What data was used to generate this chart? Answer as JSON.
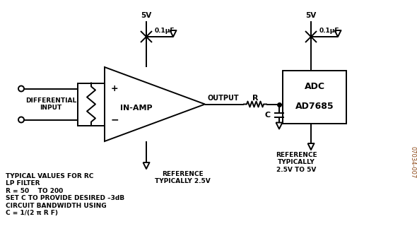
{
  "background_color": "#ffffff",
  "line_color": "#000000",
  "fig_width": 5.9,
  "fig_height": 3.27,
  "dpi": 100,
  "labels": {
    "diff_input": "DIFFERENTIAL\nINPUT",
    "in_amp": "IN-AMP",
    "output": "OUTPUT",
    "ref1": "REFERENCE\nTYPICALLY 2.5V",
    "ref2": "REFERENCE\nTYPICALLY\n2.5V TO 5V",
    "adc": "ADC",
    "ad7685": "AD7685",
    "5v_left": "5V",
    "5v_right": "5V",
    "cap_left": "0.1μF",
    "cap_right": "0.1μF",
    "R_label": "R",
    "C_label": "C",
    "typical_text": "TYPICAL VALUES FOR RC\nLP FILTER\nR = 50    TO 200\nSET C TO PROVIDE DESIRED –3dB\nCIRCUIT BANDWIDTH USING\nC = 1/(2 π R F)",
    "part_num": "07034-007"
  }
}
